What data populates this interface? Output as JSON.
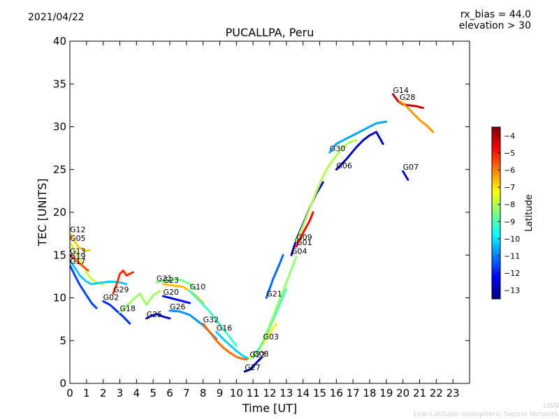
{
  "header": {
    "date": "2021/04/22",
    "rx_bias": "rx_bias = 44.0",
    "elevation": "elevation > 30"
  },
  "watermark": {
    "line1": "LISN",
    "line2": "Low-Latitude Ionospheric Sensor Network"
  },
  "chart_data": {
    "type": "scatter",
    "title": "PUCALLPA, Peru",
    "xlabel": "Time [UT]",
    "ylabel": "TEC [UNITS]",
    "xlim": [
      0,
      24
    ],
    "ylim": [
      0,
      40
    ],
    "xticks": [
      0,
      1,
      2,
      3,
      4,
      5,
      6,
      7,
      8,
      9,
      10,
      11,
      12,
      13,
      14,
      15,
      16,
      17,
      18,
      19,
      20,
      21,
      22,
      23
    ],
    "yticks": [
      0,
      5,
      10,
      15,
      20,
      25,
      30,
      35,
      40
    ],
    "grid": false,
    "colorbar": {
      "label": "Latitude",
      "min": -13.5,
      "max": -3.5,
      "ticks": [
        -4,
        -5,
        -6,
        -7,
        -8,
        -9,
        -10,
        -11,
        -12,
        -13
      ],
      "colormap": [
        "#00007f",
        "#0000ff",
        "#007fff",
        "#00ffff",
        "#7fff7f",
        "#ffff00",
        "#ff7f00",
        "#ff0000",
        "#7f0000"
      ]
    },
    "series": [
      {
        "name": "G12",
        "lat": -6.8,
        "x": [
          0.0,
          0.2,
          0.5,
          0.8,
          1.0,
          1.2
        ],
        "y": [
          17.5,
          16.8,
          16.0,
          15.6,
          15.5,
          15.6
        ]
      },
      {
        "name": "G05",
        "lat": -7.8,
        "x": [
          0.0,
          0.3,
          0.6,
          1.0,
          1.3,
          1.6,
          2.0
        ],
        "y": [
          16.5,
          15.5,
          14.5,
          13.0,
          12.2,
          11.8,
          11.5
        ]
      },
      {
        "name": "G13",
        "lat": -5.5,
        "x": [
          0.0,
          0.3,
          0.6,
          0.9,
          1.1
        ],
        "y": [
          15.0,
          14.5,
          14.0,
          13.5,
          13.2
        ]
      },
      {
        "name": "G19",
        "lat": -10.2,
        "x": [
          0.0,
          0.3,
          0.6,
          1.0,
          1.3,
          1.6,
          2.0,
          2.5,
          3.0,
          3.4
        ],
        "y": [
          14.4,
          13.5,
          12.6,
          11.9,
          11.6,
          11.7,
          11.8,
          11.9,
          11.8,
          11.6
        ]
      },
      {
        "name": "G17",
        "lat": -11.6,
        "x": [
          0.0,
          0.3,
          0.6,
          1.0,
          1.3,
          1.6
        ],
        "y": [
          13.8,
          12.6,
          11.5,
          10.3,
          9.4,
          8.8
        ]
      },
      {
        "name": "G29",
        "lat": -5.2,
        "x": [
          2.6,
          2.8,
          3.0,
          3.2,
          3.4,
          3.6,
          3.8
        ],
        "y": [
          10.5,
          11.5,
          12.8,
          13.2,
          12.6,
          12.8,
          13.0
        ]
      },
      {
        "name": "G02",
        "lat": -11.8,
        "x": [
          2.0,
          2.4,
          2.8,
          3.2,
          3.6
        ],
        "y": [
          9.6,
          9.2,
          8.5,
          7.8,
          7.0
        ]
      },
      {
        "name": "G18",
        "lat": -8.2,
        "x": [
          3.0,
          3.4,
          3.8,
          4.2,
          4.6,
          5.0,
          5.4
        ],
        "y": [
          8.3,
          9.0,
          9.8,
          10.5,
          9.2,
          10.3,
          10.8
        ]
      },
      {
        "name": "G25",
        "lat": -12.6,
        "x": [
          4.6,
          4.9,
          5.2,
          5.6,
          6.0
        ],
        "y": [
          7.6,
          7.9,
          8.1,
          7.8,
          7.6
        ]
      },
      {
        "name": "G20",
        "lat": -12.2,
        "x": [
          5.6,
          6.0,
          6.4,
          6.8,
          7.2
        ],
        "y": [
          10.2,
          10.0,
          9.8,
          9.6,
          9.4
        ]
      },
      {
        "name": "G31",
        "lat": -8.6,
        "x": [
          5.2,
          5.6,
          6.0,
          6.4,
          6.8,
          7.2,
          7.6
        ],
        "y": [
          11.8,
          12.0,
          12.0,
          12.2,
          12.0,
          11.6,
          11.0
        ]
      },
      {
        "name": "G23",
        "lat": -6.6,
        "x": [
          5.6,
          6.0,
          6.4,
          6.8,
          7.2,
          7.6,
          8.0
        ],
        "y": [
          11.6,
          11.5,
          11.4,
          11.3,
          10.8,
          10.2,
          9.4
        ]
      },
      {
        "name": "G10",
        "lat": -9.2,
        "x": [
          7.2,
          7.6,
          8.0,
          8.4,
          8.8,
          9.2,
          9.6,
          10.0
        ],
        "y": [
          10.8,
          10.0,
          9.2,
          8.4,
          7.4,
          6.4,
          5.4,
          4.4
        ]
      },
      {
        "name": "G26",
        "lat": -10.8,
        "x": [
          6.0,
          6.6,
          7.2,
          7.6,
          8.0,
          8.4,
          8.8
        ],
        "y": [
          8.5,
          8.4,
          8.0,
          7.4,
          6.8,
          6.0,
          5.2
        ]
      },
      {
        "name": "G16",
        "lat": -10.2,
        "x": [
          8.8,
          9.2,
          9.6,
          10.0,
          10.4,
          10.7
        ],
        "y": [
          6.0,
          5.2,
          4.5,
          3.8,
          3.2,
          2.9
        ]
      },
      {
        "name": "G32",
        "lat": -5.8,
        "x": [
          8.0,
          8.4,
          8.8,
          9.2,
          9.6,
          10.0,
          10.3,
          10.6
        ],
        "y": [
          7.0,
          6.0,
          5.0,
          4.2,
          3.6,
          3.1,
          2.9,
          2.8
        ]
      },
      {
        "name": "G27",
        "lat": -13.0,
        "x": [
          10.5,
          10.8,
          11.0,
          11.3,
          11.5
        ],
        "y": [
          1.4,
          1.6,
          2.0,
          2.6,
          3.0
        ]
      },
      {
        "name": "G22",
        "lat": -7.2,
        "x": [
          10.8,
          11.0,
          11.3,
          11.6,
          12.0,
          12.4
        ],
        "y": [
          2.9,
          3.2,
          3.8,
          4.6,
          5.8,
          7.0
        ]
      },
      {
        "name": "G08",
        "lat": -9.0,
        "x": [
          11.0,
          11.4,
          11.8,
          12.2,
          12.6,
          13.0
        ],
        "y": [
          3.0,
          4.2,
          5.6,
          7.4,
          9.2,
          11.0
        ]
      },
      {
        "name": "G03",
        "lat": -8.3,
        "x": [
          11.6,
          12.0,
          12.4,
          12.8,
          13.2,
          13.6
        ],
        "y": [
          5.0,
          6.8,
          8.8,
          10.8,
          12.8,
          14.8
        ]
      },
      {
        "name": "G21",
        "lat": -11.2,
        "x": [
          11.8,
          12.2,
          12.6,
          12.8
        ],
        "y": [
          10.0,
          12.2,
          14.0,
          15.0
        ]
      },
      {
        "name": "G04",
        "lat": -12.6,
        "x": [
          13.3,
          13.6,
          14.0,
          14.4,
          14.8,
          15.2
        ],
        "y": [
          15.0,
          16.8,
          18.6,
          20.5,
          22.2,
          23.5
        ]
      },
      {
        "name": "G01",
        "lat": -4.8,
        "x": [
          13.6,
          14.0,
          14.4,
          14.6
        ],
        "y": [
          16.0,
          17.6,
          19.0,
          20.0
        ]
      },
      {
        "name": "G09",
        "lat": -8.0,
        "x": [
          13.6,
          14.0,
          14.4,
          14.8,
          15.2,
          15.6,
          16.0,
          16.4,
          16.8,
          17.2
        ],
        "y": [
          16.6,
          18.4,
          20.4,
          22.4,
          24.2,
          25.6,
          26.6,
          27.6,
          28.2,
          28.4
        ]
      },
      {
        "name": "G06",
        "lat": -12.8,
        "x": [
          16.0,
          16.6,
          17.2,
          17.6,
          18.0,
          18.4,
          18.8
        ],
        "y": [
          25.0,
          26.2,
          27.6,
          28.4,
          29.0,
          29.4,
          28.0
        ]
      },
      {
        "name": "G30",
        "lat": -10.6,
        "x": [
          15.6,
          16.0,
          16.6,
          17.2,
          17.8,
          18.4,
          19.0
        ],
        "y": [
          27.0,
          28.0,
          28.6,
          29.2,
          29.8,
          30.4,
          30.6
        ]
      },
      {
        "name": "G14",
        "lat": -4.2,
        "x": [
          19.4,
          19.7,
          20.0,
          20.4,
          20.8,
          21.2
        ],
        "y": [
          33.8,
          33.0,
          32.6,
          32.5,
          32.4,
          32.2
        ]
      },
      {
        "name": "G28",
        "lat": -6.2,
        "x": [
          19.8,
          20.2,
          20.6,
          21.0,
          21.4,
          21.8
        ],
        "y": [
          33.0,
          32.4,
          31.6,
          30.8,
          30.2,
          29.4
        ]
      },
      {
        "name": "G07",
        "lat": -12.4,
        "x": [
          20.0,
          20.3
        ],
        "y": [
          24.8,
          23.8
        ]
      }
    ]
  }
}
